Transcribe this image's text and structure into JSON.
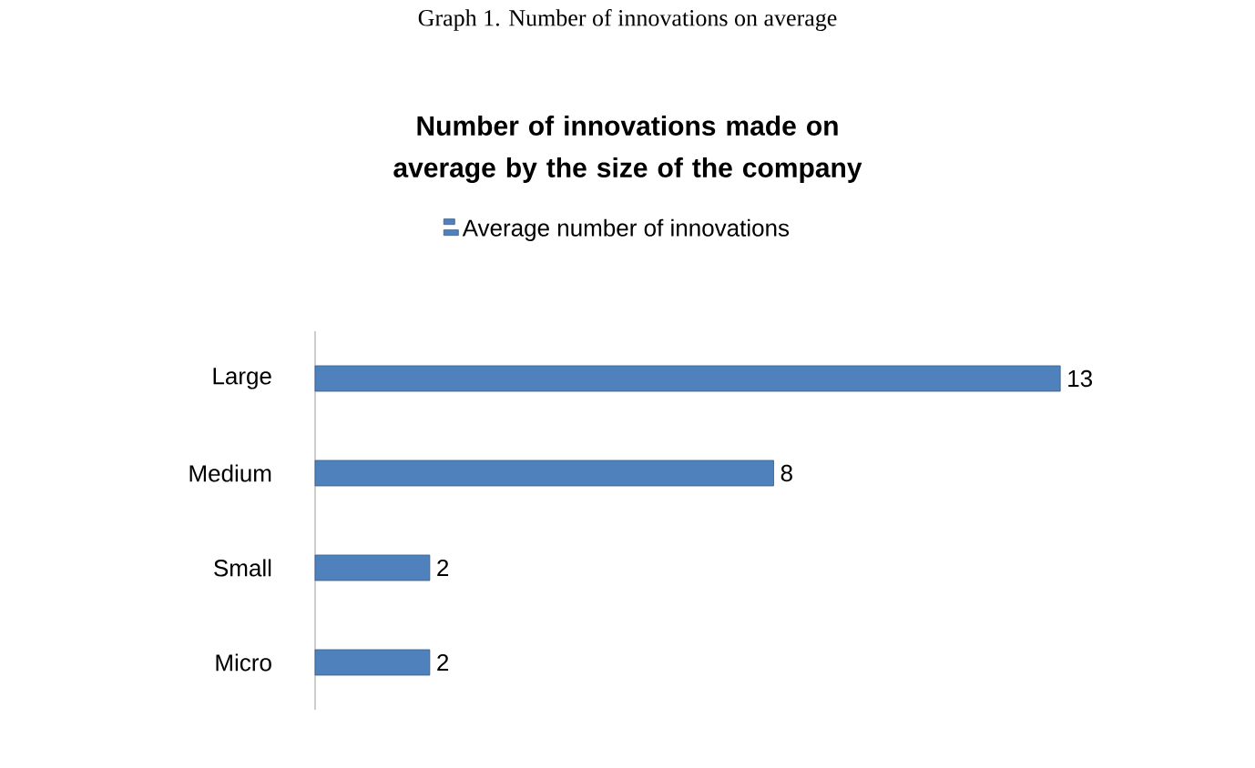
{
  "chart_data": {
    "type": "bar",
    "orientation": "horizontal",
    "title": "Number of innovations made on average by the size of the company",
    "annotations": [
      "Graph 1. Number of innovations on average"
    ],
    "categories": [
      "Large",
      "Medium",
      "Small",
      "Micro"
    ],
    "series": [
      {
        "name": "Average number of innovations",
        "color": "#4f81bd",
        "values": [
          13,
          8,
          2,
          2
        ]
      }
    ],
    "data_labels": true,
    "legend": "top"
  }
}
